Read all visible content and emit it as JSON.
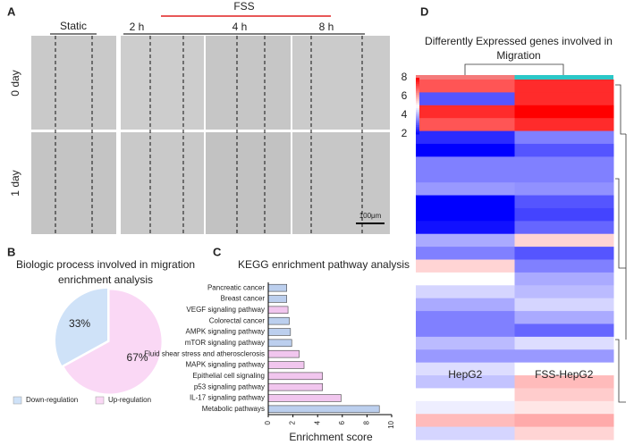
{
  "panel_labels": [
    "A",
    "B",
    "C",
    "D"
  ],
  "panel_a": {
    "group": "FSS",
    "columns": [
      "Static",
      "2 h",
      "4 h",
      "8 h"
    ],
    "rows": [
      "0 day",
      "1 day"
    ],
    "scale_bar": "100μm"
  },
  "chart_data": [
    {
      "type": "pie",
      "title": [
        "Biologic process involved in migration",
        "enrichment analysis"
      ],
      "series": [
        {
          "name": "Down-regulation",
          "color": "#cfe2f8",
          "values": [
            33
          ],
          "value_labels": [
            "33%"
          ]
        },
        {
          "name": "Up-regulation",
          "color": "#fad8f5",
          "values": [
            67
          ],
          "value_labels": [
            "67%"
          ]
        }
      ]
    },
    {
      "type": "barh",
      "title": "KEGG enrichment pathway analysis",
      "xlabel": "Enrichment score",
      "categories": [
        "Pancreatic cancer",
        "Breast cancer",
        "VEGF signaling pathway",
        "Colorectal cancer",
        "AMPK signaling pathway",
        "mTOR signaling pathway",
        "Fluid shear stress and atherosclerosis",
        "MAPK signaling pathway",
        "Epithelial cell signaling",
        "p53 signaling pathway",
        "IL-17 signaling pathway",
        "Metabolic pathways"
      ],
      "values": [
        1.5,
        1.5,
        1.6,
        1.7,
        1.8,
        1.9,
        2.5,
        2.9,
        4.4,
        4.4,
        5.9,
        9.0
      ],
      "colors": [
        "#bccfee",
        "#bccfee",
        "#f1c6ee",
        "#bccfee",
        "#bccfee",
        "#bccfee",
        "#f1c6ee",
        "#f1c6ee",
        "#f1c6ee",
        "#f1c6ee",
        "#f1c6ee",
        "#bccfee"
      ],
      "xlim": [
        0,
        10
      ],
      "xticks": [
        0,
        2,
        4,
        6,
        8,
        10
      ]
    },
    {
      "type": "heatmap",
      "title": [
        "Differently Expressed genes involved in",
        "Migration"
      ],
      "columns": [
        "HepG2",
        "FSS-HepG2"
      ],
      "column_colors": [
        "#f47a7a",
        "#2cc7c7"
      ],
      "colorscale": [
        "#0000ff",
        "#ffffff",
        "#ff0000"
      ],
      "zlim": [
        2,
        8
      ],
      "zticks": [
        2,
        4,
        6,
        8
      ],
      "values": [
        [
          7,
          7.5
        ],
        [
          3,
          7.5
        ],
        [
          7.5,
          8
        ],
        [
          7,
          7.5
        ],
        [
          2.5,
          3.5
        ],
        [
          2,
          3
        ],
        [
          3.5,
          3.5
        ],
        [
          3.5,
          3.5
        ],
        [
          3.8,
          3.7
        ],
        [
          2,
          3
        ],
        [
          2,
          2.8
        ],
        [
          2.2,
          3.2
        ],
        [
          4,
          5.5
        ],
        [
          3.5,
          3
        ],
        [
          5.5,
          3.5
        ],
        [
          5,
          4
        ],
        [
          4.5,
          4.2
        ],
        [
          4,
          4.5
        ],
        [
          3.5,
          4
        ],
        [
          3.5,
          3.2
        ],
        [
          4.2,
          4.6
        ],
        [
          3.8,
          3.8
        ],
        [
          4.6,
          5
        ],
        [
          4.3,
          5.8
        ],
        [
          5,
          5.6
        ],
        [
          4.8,
          5.3
        ],
        [
          5.8,
          6
        ],
        [
          4.5,
          5.5
        ]
      ]
    }
  ]
}
